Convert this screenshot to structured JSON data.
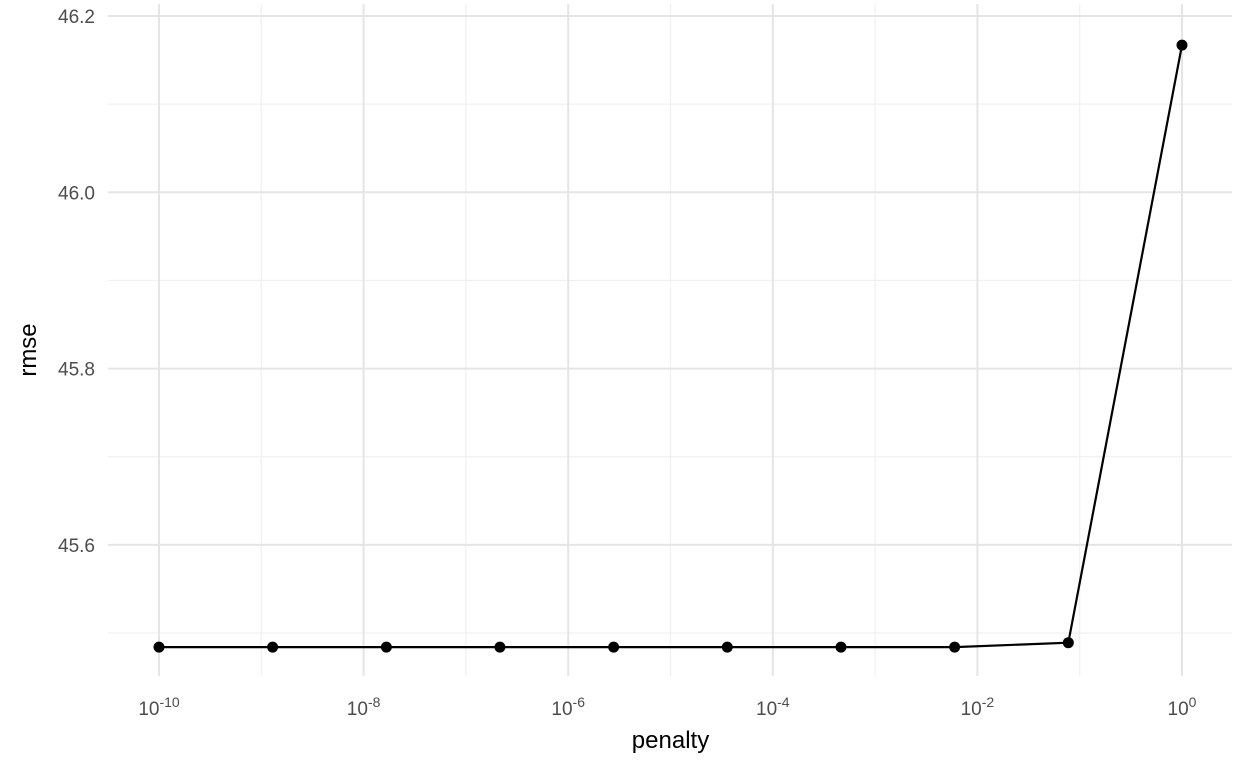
{
  "chart_data": {
    "type": "line",
    "xlabel": "penalty",
    "ylabel": "rmse",
    "x_scale": "log10",
    "grid": true,
    "legend": "none",
    "xlim": [
      1e-10,
      1
    ],
    "ylim": [
      45.44,
      46.2
    ],
    "x_ticks": [
      {
        "value": 1e-10,
        "base": "10",
        "exp": "-10"
      },
      {
        "value": 1e-08,
        "base": "10",
        "exp": "-8"
      },
      {
        "value": 1e-06,
        "base": "10",
        "exp": "-6"
      },
      {
        "value": 0.0001,
        "base": "10",
        "exp": "-4"
      },
      {
        "value": 0.01,
        "base": "10",
        "exp": "-2"
      },
      {
        "value": 1,
        "base": "10",
        "exp": "0"
      }
    ],
    "y_ticks": [
      "45.6",
      "45.8",
      "46.0",
      "46.2"
    ],
    "series": [
      {
        "x": [
          1e-10,
          1.29e-09,
          1.67e-08,
          2.15e-07,
          2.78e-06,
          3.59e-05,
          0.000464,
          0.00599,
          0.0774,
          1.0
        ],
        "y": [
          45.484,
          45.484,
          45.484,
          45.484,
          45.484,
          45.484,
          45.484,
          45.484,
          45.489,
          46.167
        ]
      }
    ],
    "colors": {
      "line": "#000000",
      "grid": "#e5e5e5",
      "background": "#ffffff"
    }
  }
}
